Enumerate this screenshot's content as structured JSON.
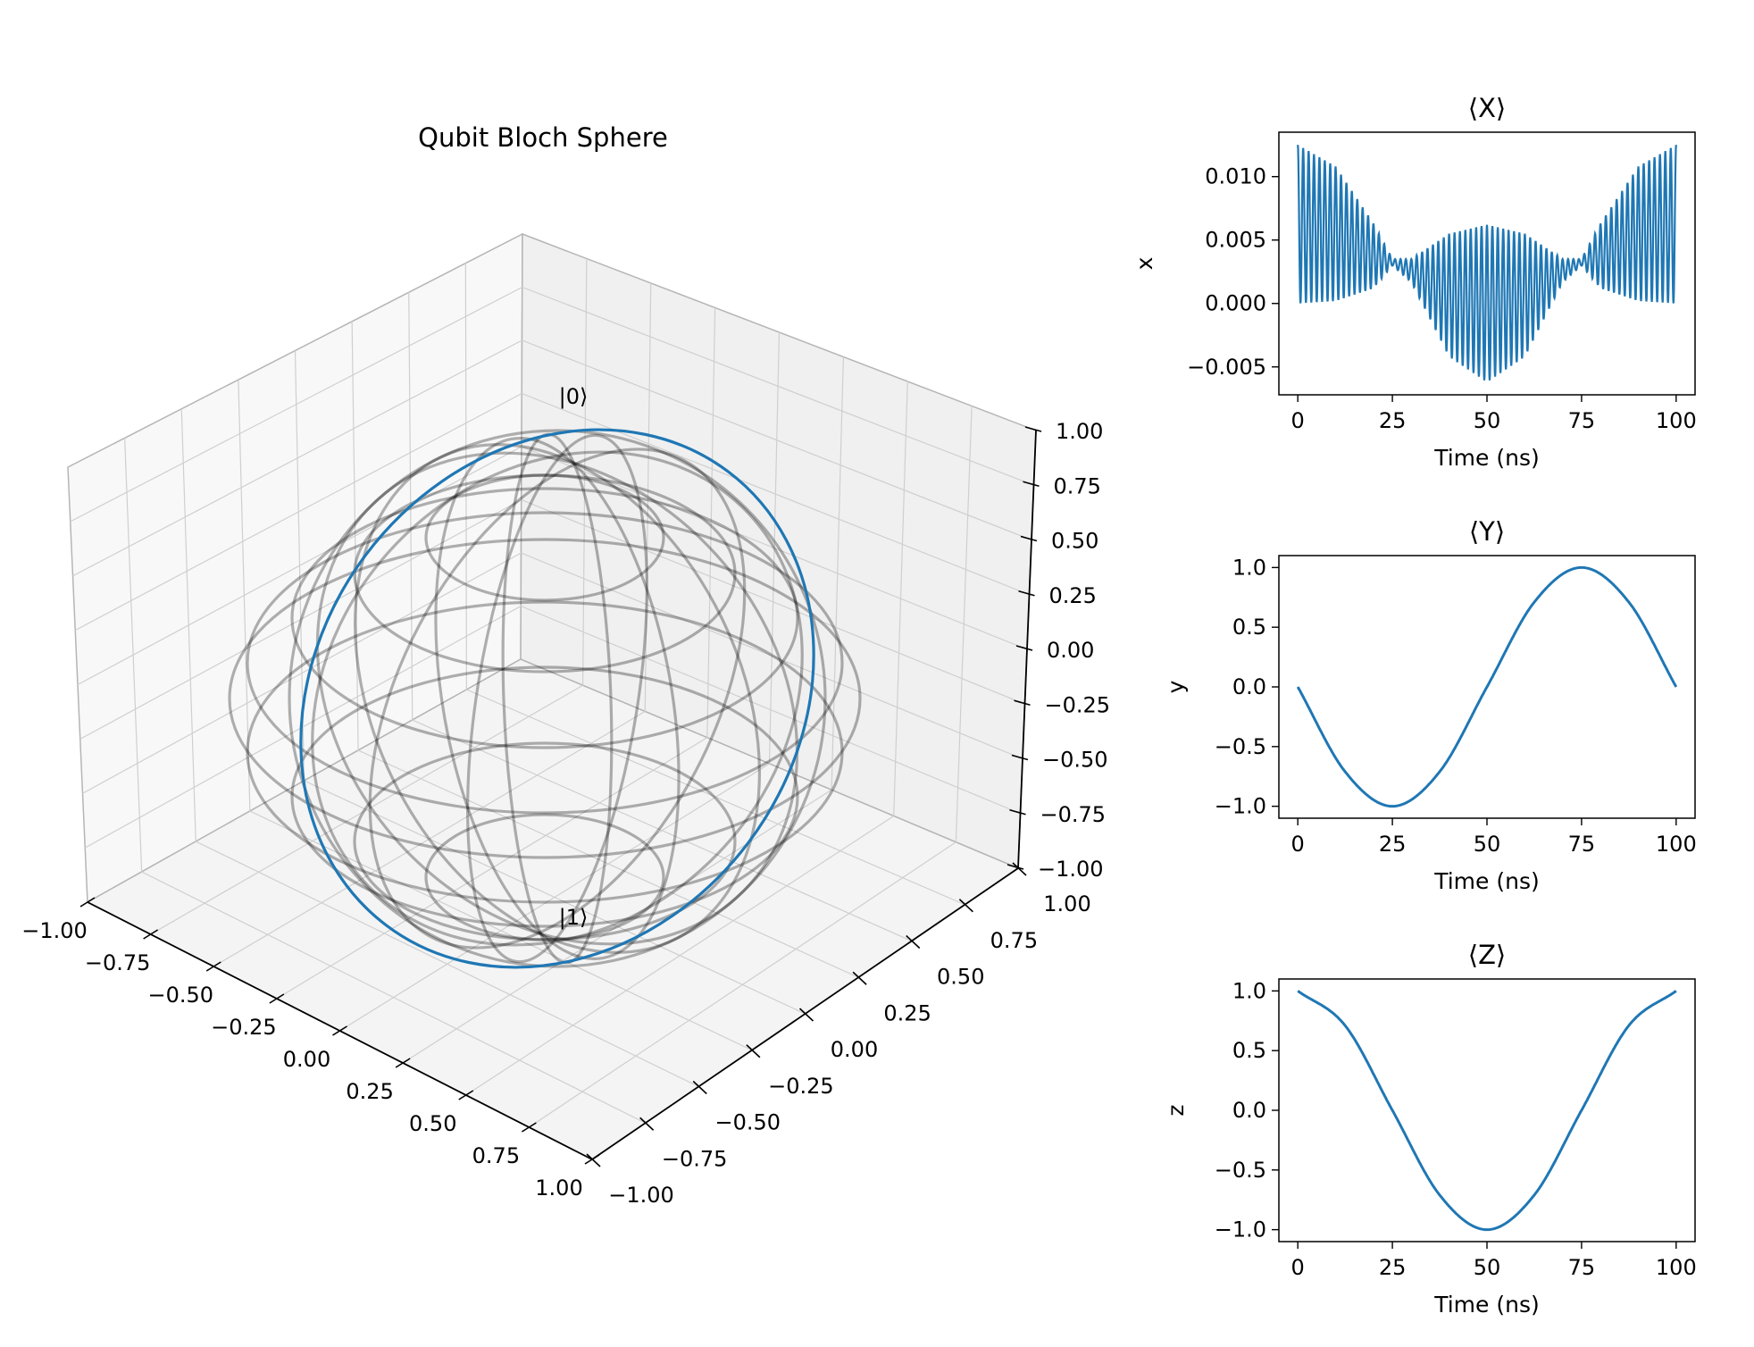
{
  "chart_data": [
    {
      "type": "line",
      "projection": "3d",
      "title": "Qubit Bloch Sphere",
      "xlim": [
        -1.0,
        1.0
      ],
      "ylim": [
        -1.0,
        1.0
      ],
      "zlim": [
        -1.0,
        1.0
      ],
      "x_ticks": [
        "−1.00",
        "−0.75",
        "−0.50",
        "−0.25",
        "0.00",
        "0.25",
        "0.50",
        "0.75",
        "1.00"
      ],
      "y_ticks": [
        "−1.00",
        "−0.75",
        "−0.50",
        "−0.25",
        "0.00",
        "0.25",
        "0.50",
        "0.75",
        "1.00"
      ],
      "z_ticks": [
        "−1.00",
        "−0.75",
        "−0.50",
        "−0.25",
        "0.00",
        "0.25",
        "0.50",
        "0.75",
        "1.00"
      ],
      "pole_labels": [
        "|0⟩",
        "|1⟩"
      ],
      "sphere_wireframe": {
        "color": "#000000",
        "opacity": 0.3
      },
      "trajectory": {
        "color": "#1f77b4",
        "description_points": [
          {
            "t": 0,
            "x": 0.0,
            "y": 0.0,
            "z": 1.0
          },
          {
            "t": 25,
            "x": 0.003,
            "y": -1.0,
            "z": 0.0
          },
          {
            "t": 50,
            "x": 0.0,
            "y": 0.0,
            "z": -1.0
          },
          {
            "t": 75,
            "x": 0.003,
            "y": 1.0,
            "z": 0.0
          },
          {
            "t": 100,
            "x": 0.0,
            "y": 0.0,
            "z": 1.0
          }
        ]
      }
    },
    {
      "type": "line",
      "title": "⟨X⟩",
      "xlabel": "Time (ns)",
      "ylabel": "x",
      "xlim": [
        -5,
        105
      ],
      "ylim": [
        -0.0072,
        0.0135
      ],
      "x_ticks": [
        0,
        25,
        50,
        75,
        100
      ],
      "y_ticks": [
        -0.005,
        0.0,
        0.005,
        0.01
      ],
      "y_tick_labels": [
        "−0.005",
        "0.000",
        "0.005",
        "0.010"
      ],
      "color": "#1f77b4",
      "series": [
        {
          "upper_envelope": {
            "x": [
              0,
              10,
              20,
              25,
              30,
              40,
              50,
              60,
              70,
              75,
              80,
              90,
              100
            ],
            "y": [
              0.0125,
              0.0108,
              0.0063,
              0.0035,
              0.0035,
              0.0055,
              0.0062,
              0.0055,
              0.0035,
              0.0035,
              0.0063,
              0.0108,
              0.0125
            ]
          },
          "lower_envelope": {
            "x": [
              0,
              10,
              20,
              25,
              30,
              40,
              50,
              60,
              70,
              75,
              80,
              90,
              100
            ],
            "y": [
              0.0,
              0.0002,
              0.0012,
              0.003,
              0.0017,
              -0.0042,
              -0.0062,
              -0.0042,
              0.0017,
              0.003,
              0.0012,
              0.0002,
              0.0
            ]
          }
        }
      ]
    },
    {
      "type": "line",
      "title": "⟨Y⟩",
      "xlabel": "Time (ns)",
      "ylabel": "y",
      "xlim": [
        -5,
        105
      ],
      "ylim": [
        -1.1,
        1.1
      ],
      "x_ticks": [
        0,
        25,
        50,
        75,
        100
      ],
      "y_ticks": [
        -1.0,
        -0.5,
        0.0,
        0.5,
        1.0
      ],
      "y_tick_labels": [
        "−1.0",
        "−0.5",
        "0.0",
        "0.5",
        "1.0"
      ],
      "color": "#1f77b4",
      "series": [
        {
          "x": [
            0,
            12.5,
            25,
            37.5,
            50,
            62.5,
            75,
            87.5,
            100
          ],
          "y": [
            0.0,
            -0.71,
            -1.0,
            -0.71,
            0.0,
            0.71,
            1.0,
            0.71,
            0.0
          ]
        }
      ]
    },
    {
      "type": "line",
      "title": "⟨Z⟩",
      "xlabel": "Time (ns)",
      "ylabel": "z",
      "xlim": [
        -5,
        105
      ],
      "ylim": [
        -1.1,
        1.1
      ],
      "x_ticks": [
        0,
        25,
        50,
        75,
        100
      ],
      "y_ticks": [
        -1.0,
        -0.5,
        0.0,
        0.5,
        1.0
      ],
      "y_tick_labels": [
        "−1.0",
        "−0.5",
        "0.0",
        "0.5",
        "1.0"
      ],
      "color": "#1f77b4",
      "series": [
        {
          "x": [
            0,
            12.5,
            25,
            37.5,
            50,
            62.5,
            75,
            87.5,
            100
          ],
          "y": [
            1.0,
            0.71,
            0.0,
            -0.71,
            -1.0,
            -0.71,
            0.0,
            0.71,
            1.0
          ]
        }
      ]
    }
  ]
}
